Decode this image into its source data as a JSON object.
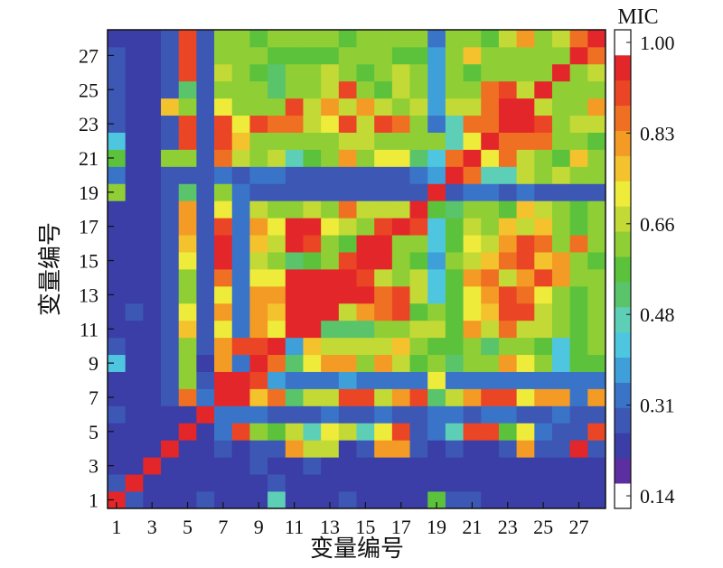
{
  "chart_data": {
    "type": "heatmap",
    "xlabel": "变量编号",
    "ylabel": "变量编号",
    "x_tick_labels": [
      "1",
      "3",
      "5",
      "7",
      "9",
      "11",
      "13",
      "15",
      "17",
      "19",
      "21",
      "23",
      "25",
      "27"
    ],
    "y_tick_labels": [
      "1",
      "3",
      "5",
      "7",
      "9",
      "11",
      "13",
      "15",
      "17",
      "19",
      "21",
      "23",
      "25",
      "27"
    ],
    "n_variables": 28,
    "colorbar": {
      "title": "MIC",
      "min": 0.14,
      "max": 1.0,
      "tick_labels": [
        "1.00",
        "0.83",
        "0.66",
        "0.48",
        "0.31",
        "0.14"
      ],
      "colors": [
        "#ffffff",
        "#5b2fa0",
        "#3a3ea6",
        "#3d57b5",
        "#3a74c9",
        "#3f9fd9",
        "#4fc6e0",
        "#5ecfb7",
        "#59c46a",
        "#5cc23c",
        "#8fcf35",
        "#c2d936",
        "#eeeb3a",
        "#f4c22d",
        "#f39b25",
        "#ef7022",
        "#ea4626",
        "#e3262a",
        "#ffffff"
      ]
    },
    "values": [
      [
        1.0,
        0.25,
        0.22,
        0.22,
        0.22,
        0.25,
        0.22,
        0.22,
        0.22,
        0.45,
        0.22,
        0.22,
        0.22,
        0.25,
        0.22,
        0.22,
        0.22,
        0.22,
        0.58,
        0.25,
        0.25,
        0.22,
        0.22,
        0.22,
        0.22,
        0.22,
        0.22,
        0.22
      ],
      [
        0.25,
        1.0,
        0.22,
        0.22,
        0.22,
        0.22,
        0.22,
        0.22,
        0.22,
        0.25,
        0.22,
        0.22,
        0.22,
        0.22,
        0.22,
        0.22,
        0.22,
        0.22,
        0.22,
        0.22,
        0.22,
        0.22,
        0.22,
        0.22,
        0.22,
        0.22,
        0.22,
        0.22
      ],
      [
        0.22,
        0.22,
        1.0,
        0.22,
        0.22,
        0.22,
        0.22,
        0.22,
        0.25,
        0.22,
        0.22,
        0.25,
        0.22,
        0.22,
        0.22,
        0.22,
        0.22,
        0.22,
        0.22,
        0.22,
        0.22,
        0.22,
        0.22,
        0.22,
        0.22,
        0.22,
        0.22,
        0.22
      ],
      [
        0.22,
        0.22,
        0.22,
        1.0,
        0.22,
        0.22,
        0.25,
        0.22,
        0.25,
        0.25,
        0.8,
        0.68,
        0.68,
        0.22,
        0.25,
        0.8,
        0.8,
        0.25,
        0.22,
        0.25,
        0.22,
        0.22,
        0.25,
        0.8,
        0.25,
        0.25,
        0.95,
        0.25
      ],
      [
        0.22,
        0.22,
        0.22,
        0.22,
        1.0,
        0.22,
        0.32,
        0.9,
        0.6,
        0.58,
        0.68,
        0.48,
        0.72,
        0.68,
        0.48,
        0.7,
        0.9,
        0.25,
        0.32,
        0.48,
        0.9,
        0.9,
        0.58,
        0.7,
        0.32,
        0.25,
        0.25,
        0.9
      ],
      [
        0.25,
        0.22,
        0.22,
        0.22,
        0.22,
        1.0,
        0.3,
        0.32,
        0.32,
        0.25,
        0.25,
        0.25,
        0.32,
        0.25,
        0.25,
        0.32,
        0.25,
        0.25,
        0.3,
        0.3,
        0.25,
        0.3,
        0.3,
        0.25,
        0.25,
        0.3,
        0.25,
        0.25
      ],
      [
        0.22,
        0.22,
        0.22,
        0.25,
        0.88,
        0.3,
        1.0,
        0.95,
        0.75,
        0.85,
        0.5,
        0.68,
        0.68,
        0.9,
        0.9,
        0.68,
        0.8,
        0.9,
        0.5,
        0.68,
        0.82,
        0.92,
        0.9,
        0.72,
        0.8,
        0.8,
        0.32,
        0.8
      ],
      [
        0.22,
        0.22,
        0.22,
        0.25,
        0.62,
        0.25,
        0.95,
        1.0,
        0.9,
        0.35,
        0.3,
        0.3,
        0.3,
        0.35,
        0.3,
        0.3,
        0.3,
        0.32,
        0.72,
        0.3,
        0.3,
        0.3,
        0.3,
        0.3,
        0.3,
        0.3,
        0.32,
        0.32
      ],
      [
        0.4,
        0.22,
        0.22,
        0.25,
        0.6,
        0.22,
        0.8,
        0.3,
        1.0,
        0.85,
        0.5,
        0.7,
        0.8,
        0.8,
        0.6,
        0.8,
        0.65,
        0.58,
        0.6,
        0.5,
        0.6,
        0.6,
        0.8,
        0.7,
        0.6,
        0.4,
        0.55,
        0.58
      ],
      [
        0.25,
        0.22,
        0.22,
        0.25,
        0.6,
        0.25,
        0.8,
        0.9,
        0.9,
        1.0,
        0.35,
        0.75,
        0.68,
        0.68,
        0.68,
        0.68,
        0.75,
        0.6,
        0.58,
        0.55,
        0.6,
        0.5,
        0.6,
        0.62,
        0.55,
        0.4,
        0.58,
        0.6
      ],
      [
        0.22,
        0.22,
        0.22,
        0.25,
        0.75,
        0.25,
        0.7,
        0.32,
        0.8,
        0.7,
        1.0,
        0.95,
        0.5,
        0.52,
        0.5,
        0.6,
        0.6,
        0.65,
        0.65,
        0.55,
        0.82,
        0.68,
        0.85,
        0.65,
        0.65,
        0.62,
        0.58,
        0.6
      ],
      [
        0.22,
        0.25,
        0.22,
        0.25,
        0.72,
        0.25,
        0.8,
        0.3,
        0.8,
        0.75,
        0.95,
        1.0,
        0.95,
        0.68,
        0.8,
        0.85,
        0.92,
        0.55,
        0.6,
        0.55,
        0.72,
        0.75,
        0.92,
        0.9,
        0.65,
        0.6,
        0.58,
        0.62
      ],
      [
        0.22,
        0.22,
        0.22,
        0.25,
        0.62,
        0.25,
        0.7,
        0.3,
        0.8,
        0.8,
        0.95,
        0.95,
        1.0,
        0.95,
        0.95,
        0.85,
        0.92,
        0.65,
        0.4,
        0.55,
        0.72,
        0.8,
        0.9,
        0.85,
        0.7,
        0.6,
        0.55,
        0.62
      ],
      [
        0.22,
        0.22,
        0.22,
        0.25,
        0.6,
        0.25,
        0.85,
        0.3,
        0.7,
        0.7,
        0.95,
        0.95,
        0.95,
        1.0,
        0.9,
        0.68,
        0.6,
        0.65,
        0.4,
        0.55,
        0.8,
        0.85,
        0.65,
        0.8,
        0.9,
        0.8,
        0.6,
        0.62
      ],
      [
        0.22,
        0.22,
        0.22,
        0.25,
        0.7,
        0.25,
        0.95,
        0.3,
        0.68,
        0.6,
        0.5,
        0.58,
        0.6,
        0.9,
        1.0,
        0.95,
        0.62,
        0.58,
        0.35,
        0.6,
        0.68,
        0.75,
        0.85,
        0.9,
        0.75,
        0.8,
        0.62,
        0.58
      ],
      [
        0.22,
        0.22,
        0.22,
        0.25,
        0.75,
        0.25,
        0.95,
        0.3,
        0.75,
        0.65,
        0.95,
        0.9,
        0.62,
        0.55,
        0.95,
        1.0,
        0.62,
        0.6,
        0.4,
        0.55,
        0.72,
        0.68,
        0.8,
        0.9,
        0.85,
        0.6,
        0.85,
        0.62
      ],
      [
        0.22,
        0.22,
        0.22,
        0.25,
        0.82,
        0.25,
        0.9,
        0.3,
        0.8,
        0.7,
        0.95,
        0.95,
        0.7,
        0.68,
        0.6,
        0.9,
        1.0,
        0.9,
        0.4,
        0.55,
        0.68,
        0.6,
        0.78,
        0.68,
        0.78,
        0.6,
        0.58,
        0.62
      ],
      [
        0.22,
        0.22,
        0.22,
        0.25,
        0.8,
        0.25,
        0.72,
        0.3,
        0.68,
        0.6,
        0.6,
        0.68,
        0.62,
        0.85,
        0.68,
        0.68,
        0.68,
        1.0,
        0.55,
        0.5,
        0.62,
        0.62,
        0.58,
        0.75,
        0.68,
        0.62,
        0.55,
        0.62
      ],
      [
        0.6,
        0.22,
        0.22,
        0.25,
        0.52,
        0.25,
        0.6,
        0.3,
        0.25,
        0.25,
        0.25,
        0.25,
        0.25,
        0.25,
        0.25,
        0.25,
        0.25,
        0.25,
        1.0,
        0.25,
        0.3,
        0.3,
        0.25,
        0.3,
        0.25,
        0.25,
        0.25,
        0.25
      ],
      [
        0.3,
        0.22,
        0.22,
        0.25,
        0.25,
        0.25,
        0.32,
        0.25,
        0.3,
        0.3,
        0.25,
        0.25,
        0.25,
        0.25,
        0.25,
        0.25,
        0.25,
        0.3,
        0.35,
        1.0,
        0.85,
        0.48,
        0.48,
        0.68,
        0.62,
        0.65,
        0.6,
        0.62
      ],
      [
        0.55,
        0.22,
        0.22,
        0.62,
        0.62,
        0.25,
        0.85,
        0.65,
        0.62,
        0.65,
        0.48,
        0.55,
        0.62,
        0.8,
        0.6,
        0.7,
        0.7,
        0.52,
        0.4,
        0.85,
        1.0,
        0.72,
        0.85,
        0.68,
        0.6,
        0.58,
        0.75,
        0.62
      ],
      [
        0.4,
        0.22,
        0.22,
        0.25,
        0.9,
        0.25,
        0.92,
        0.75,
        0.62,
        0.62,
        0.62,
        0.62,
        0.62,
        0.68,
        0.65,
        0.6,
        0.62,
        0.62,
        0.6,
        0.48,
        0.72,
        1.0,
        0.88,
        0.88,
        0.85,
        0.6,
        0.6,
        0.55
      ],
      [
        0.25,
        0.22,
        0.22,
        0.25,
        0.9,
        0.25,
        0.92,
        0.72,
        0.9,
        0.88,
        0.85,
        0.68,
        0.72,
        0.9,
        0.68,
        0.9,
        0.85,
        0.62,
        0.32,
        0.48,
        0.85,
        0.88,
        1.0,
        0.95,
        0.9,
        0.62,
        0.65,
        0.68
      ],
      [
        0.25,
        0.22,
        0.22,
        0.78,
        0.62,
        0.25,
        0.72,
        0.62,
        0.62,
        0.62,
        0.9,
        0.65,
        0.8,
        0.65,
        0.8,
        0.68,
        0.62,
        0.68,
        0.38,
        0.68,
        0.68,
        0.88,
        0.95,
        1.0,
        0.65,
        0.62,
        0.62,
        0.8
      ],
      [
        0.25,
        0.22,
        0.22,
        0.25,
        0.5,
        0.25,
        0.62,
        0.62,
        0.62,
        0.5,
        0.62,
        0.62,
        0.65,
        0.9,
        0.6,
        0.58,
        0.65,
        0.62,
        0.35,
        0.62,
        0.6,
        0.85,
        0.9,
        0.65,
        1.0,
        0.62,
        0.62,
        0.62
      ],
      [
        0.25,
        0.22,
        0.22,
        0.25,
        0.9,
        0.25,
        0.65,
        0.62,
        0.58,
        0.5,
        0.6,
        0.62,
        0.65,
        0.62,
        0.58,
        0.6,
        0.65,
        0.62,
        0.35,
        0.62,
        0.58,
        0.62,
        0.62,
        0.62,
        0.62,
        1.0,
        0.62,
        0.68
      ],
      [
        0.25,
        0.22,
        0.22,
        0.25,
        0.9,
        0.25,
        0.6,
        0.62,
        0.62,
        0.58,
        0.58,
        0.58,
        0.55,
        0.6,
        0.62,
        0.62,
        0.58,
        0.55,
        0.35,
        0.6,
        0.75,
        0.62,
        0.62,
        0.62,
        0.62,
        0.62,
        1.0,
        0.85
      ],
      [
        0.22,
        0.22,
        0.22,
        0.25,
        0.92,
        0.25,
        0.62,
        0.62,
        0.58,
        0.6,
        0.62,
        0.62,
        0.62,
        0.58,
        0.62,
        0.62,
        0.62,
        0.62,
        0.32,
        0.62,
        0.62,
        0.55,
        0.68,
        0.8,
        0.62,
        0.68,
        0.85,
        1.0
      ]
    ]
  }
}
